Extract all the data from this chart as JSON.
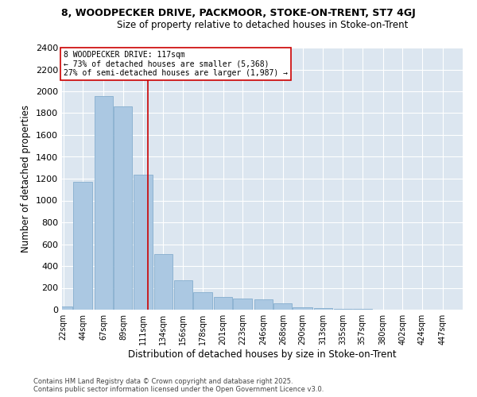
{
  "title1": "8, WOODPECKER DRIVE, PACKMOOR, STOKE-ON-TRENT, ST7 4GJ",
  "title2": "Size of property relative to detached houses in Stoke-on-Trent",
  "xlabel": "Distribution of detached houses by size in Stoke-on-Trent",
  "ylabel": "Number of detached properties",
  "footer1": "Contains HM Land Registry data © Crown copyright and database right 2025.",
  "footer2": "Contains public sector information licensed under the Open Government Licence v3.0.",
  "annotation_line1": "8 WOODPECKER DRIVE: 117sqm",
  "annotation_line2": "← 73% of detached houses are smaller (5,368)",
  "annotation_line3": "27% of semi-detached houses are larger (1,987) →",
  "property_size": 117,
  "bar_color": "#abc8e2",
  "bar_edge_color": "#85aece",
  "vline_color": "#cc0000",
  "annotation_box_color": "#cc0000",
  "background_color": "#dce6f0",
  "bins": [
    22,
    44,
    67,
    89,
    111,
    134,
    156,
    178,
    201,
    223,
    246,
    268,
    290,
    313,
    335,
    357,
    380,
    402,
    424,
    447,
    469
  ],
  "counts": [
    30,
    1170,
    1960,
    1860,
    1240,
    510,
    270,
    160,
    115,
    100,
    95,
    55,
    25,
    15,
    10,
    5,
    3,
    3,
    2,
    2
  ],
  "ylim": [
    0,
    2400
  ],
  "yticks": [
    0,
    200,
    400,
    600,
    800,
    1000,
    1200,
    1400,
    1600,
    1800,
    2000,
    2200,
    2400
  ]
}
